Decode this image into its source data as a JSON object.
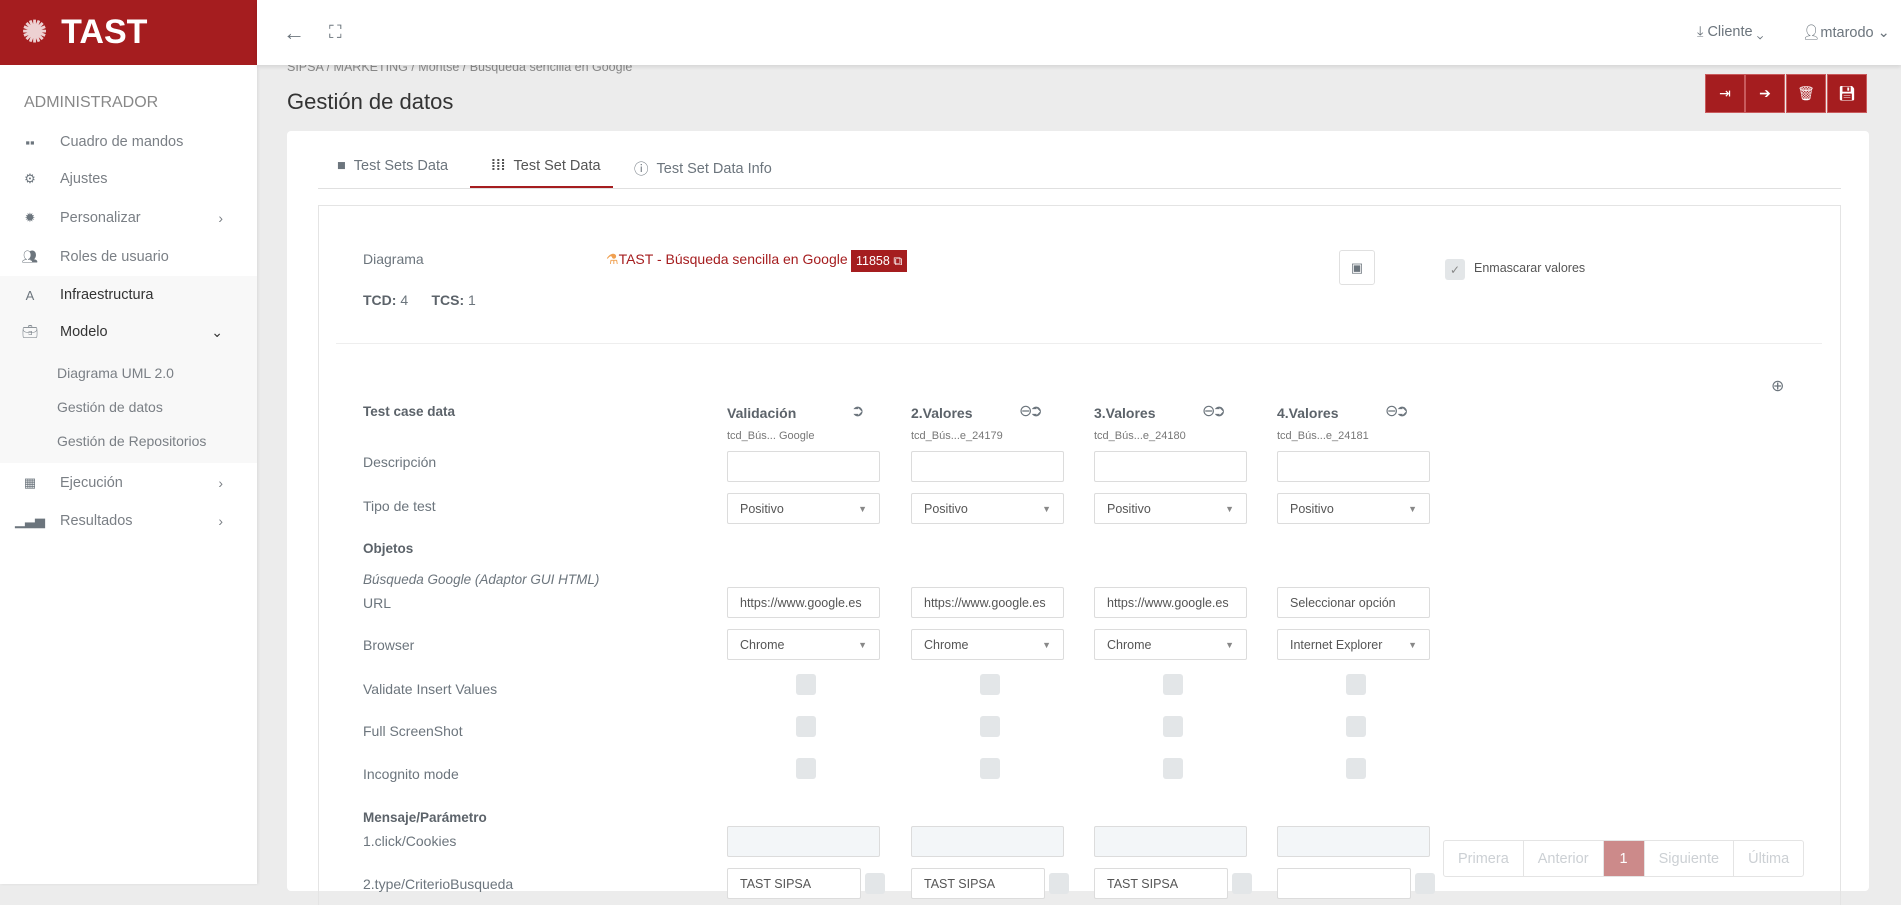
{
  "brand": {
    "name": "TAST",
    "color": "#a51d1f"
  },
  "sidebar": {
    "heading": "ADMINISTRADOR",
    "items": [
      {
        "label": "Cuadro de mandos",
        "icon": "grid-icon"
      },
      {
        "label": "Ajustes",
        "icon": "gear-icon"
      },
      {
        "label": "Personalizar",
        "icon": "cog-icon",
        "chevron": "right"
      },
      {
        "label": "Roles de usuario",
        "icon": "users-icon"
      },
      {
        "label": "Infraestructura",
        "icon": "road-icon"
      },
      {
        "label": "Modelo",
        "icon": "briefcase-icon",
        "chevron": "down"
      },
      {
        "label": "Ejecución",
        "icon": "calendar-icon",
        "chevron": "right"
      },
      {
        "label": "Resultados",
        "icon": "bar-chart-icon",
        "chevron": "right"
      }
    ],
    "subitems": [
      "Diagrama UML 2.0",
      "Gestión de datos",
      "Gestión de Repositorios"
    ]
  },
  "header": {
    "client": "Cliente",
    "user": "mtarodo"
  },
  "breadcrumb": "SIPSA / MARKETING / Montse / Búsqueda sencilla en Google",
  "page_title": "Gestión de datos",
  "tabs": [
    "Test Sets Data",
    "Test Set Data",
    "Test Set Data Info"
  ],
  "active_tab": "Test Set Data",
  "info": {
    "diagram_label": "Diagrama",
    "diagram_link": "TAST - Búsqueda sencilla en Google",
    "diagram_id": "11858",
    "tcd_label": "TCD:",
    "tcd": "4",
    "tcs_label": "TCS:",
    "tcs": "1",
    "mask_label": "Enmascarar valores",
    "mask_checked": true
  },
  "grid": {
    "header_label": "Test case data",
    "columns": [
      {
        "title": "Validación",
        "sub": "tcd_Bús... Google",
        "desc": "",
        "tipo": "Positivo",
        "url": "https://www.google.es",
        "browser": "Chrome",
        "type2": "TAST SIPSA"
      },
      {
        "title": "2.Valores",
        "sub": "tcd_Bús...e_24179",
        "desc": "",
        "tipo": "Positivo",
        "url": "https://www.google.es",
        "browser": "Chrome",
        "type2": "TAST SIPSA"
      },
      {
        "title": "3.Valores",
        "sub": "tcd_Bús...e_24180",
        "desc": "",
        "tipo": "Positivo",
        "url": "https://www.google.es",
        "browser": "Chrome",
        "type2": "TAST SIPSA"
      },
      {
        "title": "4.Valores",
        "sub": "tcd_Bús...e_24181",
        "desc": "",
        "tipo": "Positivo",
        "url": "Seleccionar opción",
        "browser": "Internet Explorer",
        "type2": ""
      }
    ],
    "rows": {
      "descripcion": "Descripción",
      "tipo": "Tipo de test",
      "objetos": "Objetos",
      "adaptor": "Búsqueda Google (Adaptor GUI HTML)",
      "url": "URL",
      "browser": "Browser",
      "validate": "Validate Insert Values",
      "full": "Full ScreenShot",
      "incognito": "Incognito mode",
      "mensaje": "Mensaje/Parámetro",
      "click": "1.click/Cookies",
      "type": "2.type/CriterioBusqueda"
    }
  },
  "pagination": {
    "first": "Primera",
    "prev": "Anterior",
    "current": "1",
    "next": "Siguiente",
    "last": "Última"
  }
}
